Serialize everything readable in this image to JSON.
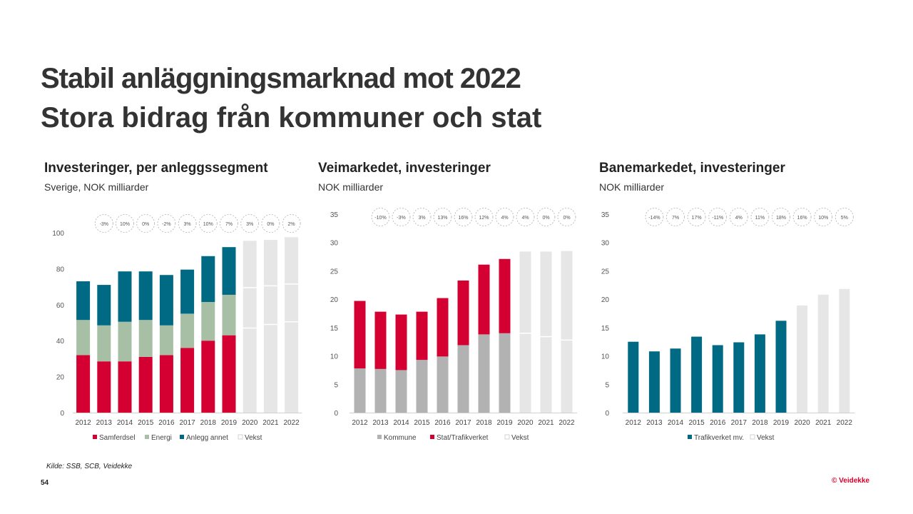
{
  "header": {
    "title": "Stabil anläggningsmarknad mot 2022",
    "subtitle": "Stora bidrag från kommuner och stat"
  },
  "footer": {
    "source": "Kilde: SSB, SCB, Veidekke",
    "page_number": "54",
    "brand": "© Veidekke"
  },
  "colors": {
    "samferdsel": "#d50032",
    "energi": "#a7bfa5",
    "anlegg_annet": "#006a84",
    "kommune": "#b2b2b2",
    "stat": "#d50032",
    "trafikverket": "#006a84",
    "vekst": "#e6e6e6"
  },
  "chart_data": [
    {
      "type": "bar",
      "stacked": true,
      "title": "Investeringer, per anleggssegment",
      "subtitle": "Sverige, NOK milliarder",
      "categories": [
        "2012",
        "2013",
        "2014",
        "2015",
        "2016",
        "2017",
        "2018",
        "2019",
        "2020",
        "2021",
        "2022"
      ],
      "ylim": [
        0,
        100
      ],
      "yticks": [
        0,
        20,
        40,
        60,
        80,
        100
      ],
      "growth_labels": [
        "-3%",
        "10%",
        "0%",
        "-2%",
        "3%",
        "10%",
        "7%",
        "3%",
        "0%",
        "2%"
      ],
      "series": [
        {
          "name": "Samferdsel",
          "color_key": "samferdsel",
          "values": [
            32,
            28.5,
            28.5,
            31,
            32,
            36,
            40,
            43,
            null,
            null,
            null
          ]
        },
        {
          "name": "Energi",
          "color_key": "energi",
          "values": [
            19.5,
            20,
            22,
            20.5,
            16.5,
            19,
            21.5,
            22.5,
            null,
            null,
            null
          ]
        },
        {
          "name": "Anlegg annet",
          "color_key": "anlegg_annet",
          "values": [
            21.5,
            22.5,
            28,
            27,
            28,
            24.5,
            25.5,
            26.5,
            null,
            null,
            null
          ]
        },
        {
          "name": "Vekst",
          "color_key": "vekst",
          "values": [
            null,
            null,
            null,
            null,
            null,
            null,
            null,
            null,
            95.5,
            96,
            97.5
          ]
        }
      ],
      "vekst_dividers": [
        [
          47,
          69.5
        ],
        [
          49,
          70.5
        ],
        [
          50.5,
          71.5
        ]
      ],
      "legend_position": "bottom"
    },
    {
      "type": "bar",
      "stacked": true,
      "title": "Veimarkedet, investeringer",
      "subtitle": "NOK milliarder",
      "categories": [
        "2012",
        "2013",
        "2014",
        "2015",
        "2016",
        "2017",
        "2018",
        "2019",
        "2020",
        "2021",
        "2022"
      ],
      "ylim": [
        0,
        35
      ],
      "yticks": [
        0,
        5,
        10,
        15,
        20,
        25,
        30,
        35
      ],
      "growth_labels": [
        "-10%",
        "-3%",
        "3%",
        "13%",
        "16%",
        "12%",
        "4%",
        "4%",
        "0%",
        "0%"
      ],
      "series": [
        {
          "name": "Kommune",
          "color_key": "kommune",
          "values": [
            7.8,
            7.7,
            7.5,
            9.3,
            9.9,
            11.9,
            13.8,
            14.0,
            null,
            null,
            null
          ]
        },
        {
          "name": "Stat/Trafikverket",
          "color_key": "stat",
          "values": [
            11.9,
            10.1,
            9.8,
            8.5,
            10.3,
            11.4,
            12.3,
            13.1,
            null,
            null,
            null
          ]
        },
        {
          "name": "Vekst",
          "color_key": "vekst",
          "values": [
            null,
            null,
            null,
            null,
            null,
            null,
            null,
            null,
            28.4,
            28.4,
            28.5
          ]
        }
      ],
      "vekst_dividers": [
        [
          14.0
        ],
        [
          13.4
        ],
        [
          12.8
        ]
      ],
      "legend_position": "bottom"
    },
    {
      "type": "bar",
      "stacked": false,
      "title": "Banemarkedet, investeringer",
      "subtitle": "NOK milliarder",
      "categories": [
        "2012",
        "2013",
        "2014",
        "2015",
        "2016",
        "2017",
        "2018",
        "2019",
        "2020",
        "2021",
        "2022"
      ],
      "ylim": [
        0,
        35
      ],
      "yticks": [
        0,
        5,
        10,
        15,
        20,
        25,
        30,
        35
      ],
      "growth_labels": [
        "-14%",
        "7%",
        "17%",
        "-11%",
        "4%",
        "11%",
        "18%",
        "16%",
        "10%",
        "5%"
      ],
      "series": [
        {
          "name": "Trafikverket mv.",
          "color_key": "trafikverket",
          "values": [
            12.5,
            10.8,
            11.3,
            13.4,
            11.9,
            12.4,
            13.8,
            16.2,
            null,
            null,
            null
          ]
        },
        {
          "name": "Vekst",
          "color_key": "vekst",
          "values": [
            null,
            null,
            null,
            null,
            null,
            null,
            null,
            null,
            18.9,
            20.8,
            21.8
          ]
        }
      ],
      "vekst_dividers": [
        [],
        [],
        []
      ],
      "legend_position": "bottom"
    }
  ]
}
